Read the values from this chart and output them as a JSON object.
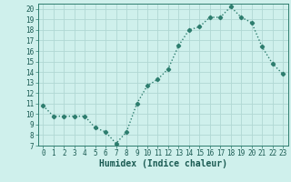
{
  "title": "",
  "xlabel": "Humidex (Indice chaleur)",
  "x": [
    0,
    1,
    2,
    3,
    4,
    5,
    6,
    7,
    8,
    9,
    10,
    11,
    12,
    13,
    14,
    15,
    16,
    17,
    18,
    19,
    20,
    21,
    22,
    23
  ],
  "y": [
    10.8,
    9.8,
    9.8,
    9.8,
    9.8,
    8.7,
    8.3,
    7.2,
    8.3,
    11.0,
    12.7,
    13.3,
    14.3,
    16.5,
    18.0,
    18.3,
    19.2,
    19.2,
    20.2,
    19.2,
    18.7,
    16.4,
    14.8,
    13.8
  ],
  "line_color": "#2d7d6e",
  "marker": "D",
  "marker_size": 2.2,
  "bg_color": "#cff0ec",
  "grid_color": "#b0d8d4",
  "xlim": [
    -0.5,
    23.5
  ],
  "ylim": [
    7,
    20.5
  ],
  "yticks": [
    7,
    8,
    9,
    10,
    11,
    12,
    13,
    14,
    15,
    16,
    17,
    18,
    19,
    20
  ],
  "xticks": [
    0,
    1,
    2,
    3,
    4,
    5,
    6,
    7,
    8,
    9,
    10,
    11,
    12,
    13,
    14,
    15,
    16,
    17,
    18,
    19,
    20,
    21,
    22,
    23
  ],
  "tick_fontsize": 5.5,
  "label_fontsize": 7,
  "line_width": 1.0
}
